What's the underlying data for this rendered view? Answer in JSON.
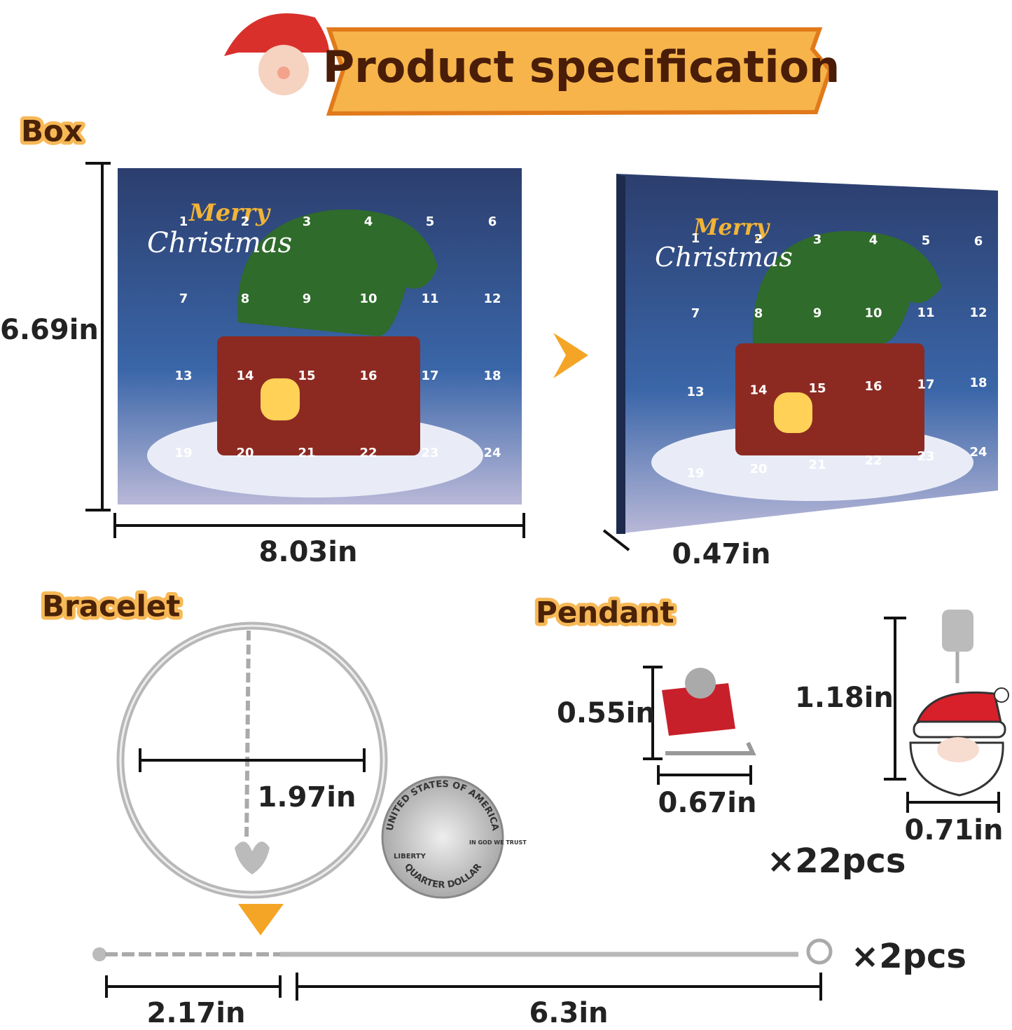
{
  "header": {
    "title": "Product specification"
  },
  "box": {
    "label": "Box",
    "height": "6.69in",
    "width": "8.03in",
    "depth": "0.47in",
    "greeting": [
      "Merry",
      "Christmas"
    ],
    "doors": [
      "1",
      "2",
      "3",
      "4",
      "5",
      "6",
      "7",
      "8",
      "9",
      "10",
      "11",
      "12",
      "13",
      "14",
      "15",
      "16",
      "17",
      "18",
      "19",
      "20",
      "21",
      "22",
      "23",
      "24"
    ]
  },
  "bracelet": {
    "label": "Bracelet",
    "diameter": "1.97in",
    "extender": "2.17in",
    "length": "6.3in",
    "quantity": "×2pcs",
    "coin": {
      "top": "UNITED STATES OF AMERICA",
      "left": "LIBERTY",
      "motto": "IN GOD WE TRUST",
      "bottom": "QUARTER DOLLAR"
    }
  },
  "pendant": {
    "label": "Pendant",
    "sleigh_height": "0.55in",
    "sleigh_width": "0.67in",
    "santa_height": "1.18in",
    "santa_width": "0.71in",
    "quantity": "×22pcs"
  }
}
